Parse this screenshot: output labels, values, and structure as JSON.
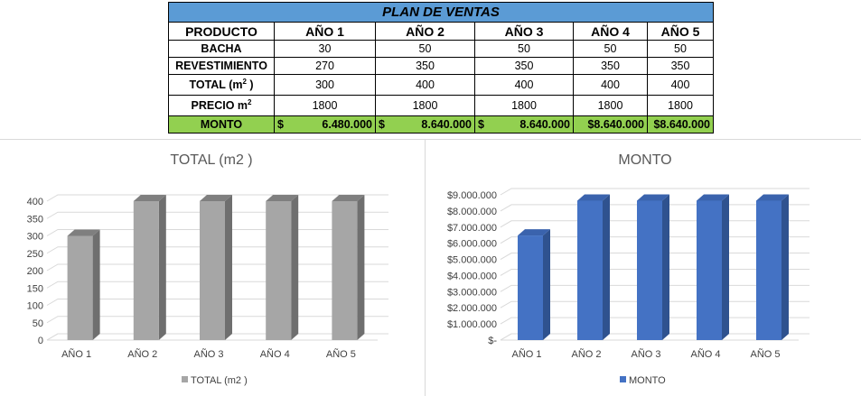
{
  "table": {
    "title": "PLAN DE VENTAS",
    "headers": [
      "PRODUCTO",
      "AÑO 1",
      "AÑO 2",
      "AÑO 3",
      "AÑO 4",
      "AÑO 5"
    ],
    "rows": [
      {
        "label": "BACHA",
        "values": [
          "30",
          "50",
          "50",
          "50",
          "50"
        ]
      },
      {
        "label": "REVESTIMIENTO",
        "values": [
          "270",
          "350",
          "350",
          "350",
          "350"
        ]
      },
      {
        "label": "TOTAL (m",
        "sup": "2",
        "label_end": " )",
        "values": [
          "300",
          "400",
          "400",
          "400",
          "400"
        ]
      },
      {
        "label": "PRECIO m",
        "sup": "2",
        "label_end": "",
        "values": [
          "1800",
          "1800",
          "1800",
          "1800",
          "1800"
        ]
      }
    ],
    "monto": {
      "label": "MONTO",
      "cells": [
        {
          "cur": "$",
          "val": "6.480.000"
        },
        {
          "cur": "$",
          "val": "8.640.000"
        },
        {
          "cur": "$",
          "val": "8.640.000"
        },
        {
          "cur": "",
          "val": "$8.640.000"
        },
        {
          "cur": "",
          "val": "$8.640.000"
        }
      ]
    }
  },
  "chart_data": [
    {
      "type": "bar",
      "title": "TOTAL (m2 )",
      "categories": [
        "AÑO 1",
        "AÑO 2",
        "AÑO 3",
        "AÑO 4",
        "AÑO 5"
      ],
      "series": [
        {
          "name": "TOTAL (m2 )",
          "values": [
            300,
            400,
            400,
            400,
            400
          ]
        }
      ],
      "ylim": [
        0,
        400
      ],
      "yticks": [
        0,
        50,
        100,
        150,
        200,
        250,
        300,
        350,
        400
      ],
      "ytick_labels": [
        "0",
        "50",
        "100",
        "150",
        "200",
        "250",
        "300",
        "350",
        "400"
      ],
      "grid": true,
      "legend": "bottom",
      "colors": {
        "front": "#a6a6a6",
        "side": "#6f6f6f",
        "top": "#7f7f7f"
      }
    },
    {
      "type": "bar",
      "title": "MONTO",
      "categories": [
        "AÑO 1",
        "AÑO 2",
        "AÑO 3",
        "AÑO 4",
        "AÑO 5"
      ],
      "series": [
        {
          "name": "MONTO",
          "values": [
            6480000,
            8640000,
            8640000,
            8640000,
            8640000
          ]
        }
      ],
      "ylim": [
        0,
        9000000
      ],
      "yticks": [
        0,
        1000000,
        2000000,
        3000000,
        4000000,
        5000000,
        6000000,
        7000000,
        8000000,
        9000000
      ],
      "ytick_labels": [
        "$-",
        "$1.000.000",
        "$2.000.000",
        "$3.000.000",
        "$4.000.000",
        "$5.000.000",
        "$6.000.000",
        "$7.000.000",
        "$8.000.000",
        "$9.000.000"
      ],
      "grid": true,
      "legend": "bottom",
      "colors": {
        "front": "#4472c4",
        "side": "#2f528f",
        "top": "#3a63ad"
      }
    }
  ]
}
